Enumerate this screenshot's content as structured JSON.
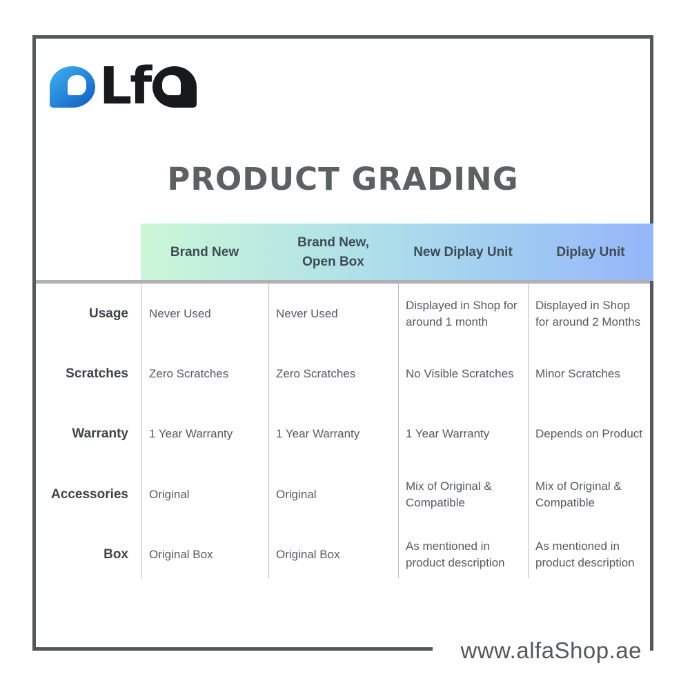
{
  "logo": {
    "blue_letter": "a",
    "letters": "Lf",
    "last_letter": "a"
  },
  "title": "PRODUCT GRADING",
  "table": {
    "columns": [
      "Brand New",
      "Brand New, Open Box",
      "New Diplay Unit",
      "Diplay Unit"
    ],
    "rows": [
      {
        "label": "Usage",
        "cells": [
          "Never Used",
          "Never Used",
          "Displayed in Shop for around 1 month",
          "Displayed in Shop for around 2 Months"
        ]
      },
      {
        "label": "Scratches",
        "cells": [
          "Zero Scratches",
          "Zero Scratches",
          "No Visible Scratches",
          "Minor Scratches"
        ]
      },
      {
        "label": "Warranty",
        "cells": [
          "1 Year Warranty",
          "1 Year Warranty",
          "1 Year Warranty",
          "Depends on Product"
        ]
      },
      {
        "label": "Accessories",
        "cells": [
          "Original",
          "Original",
          "Mix of Original & Compatible",
          "Mix of Original & Compatible"
        ]
      },
      {
        "label": "Box",
        "cells": [
          "Original Box",
          "Original Box",
          "As mentioned in product description",
          "As mentioned in product description"
        ]
      }
    ]
  },
  "footer": {
    "website": "www.alfaShop.ae"
  },
  "colors": {
    "frame": "#54585a",
    "gradient_start": "#cbf7d6",
    "gradient_mid": "#abdcec",
    "gradient_end": "#95b6fa",
    "logo_blue_1": "#3fb2f0",
    "logo_blue_2": "#0f5cc0"
  }
}
